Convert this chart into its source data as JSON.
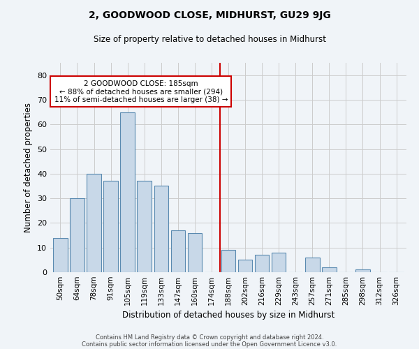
{
  "title": "2, GOODWOOD CLOSE, MIDHURST, GU29 9JG",
  "subtitle": "Size of property relative to detached houses in Midhurst",
  "xlabel": "Distribution of detached houses by size in Midhurst",
  "ylabel": "Number of detached properties",
  "bar_labels": [
    "50sqm",
    "64sqm",
    "78sqm",
    "91sqm",
    "105sqm",
    "119sqm",
    "133sqm",
    "147sqm",
    "160sqm",
    "174sqm",
    "188sqm",
    "202sqm",
    "216sqm",
    "229sqm",
    "243sqm",
    "257sqm",
    "271sqm",
    "285sqm",
    "298sqm",
    "312sqm",
    "326sqm"
  ],
  "bar_values": [
    14,
    30,
    40,
    37,
    65,
    37,
    35,
    17,
    16,
    0,
    9,
    5,
    7,
    8,
    0,
    6,
    2,
    0,
    1,
    0,
    0
  ],
  "bar_color": "#c8d8e8",
  "bar_edge_color": "#5a8ab0",
  "vline_x": 10.0,
  "vline_color": "#cc0000",
  "annotation_text": "2 GOODWOOD CLOSE: 185sqm\n← 88% of detached houses are smaller (294)\n11% of semi-detached houses are larger (38) →",
  "annotation_box_color": "#ffffff",
  "annotation_box_edge": "#cc0000",
  "ylim": [
    0,
    85
  ],
  "yticks": [
    0,
    10,
    20,
    30,
    40,
    50,
    60,
    70,
    80
  ],
  "grid_color": "#cccccc",
  "bg_color": "#f0f4f8",
  "footer1": "Contains HM Land Registry data © Crown copyright and database right 2024.",
  "footer2": "Contains public sector information licensed under the Open Government Licence v3.0."
}
